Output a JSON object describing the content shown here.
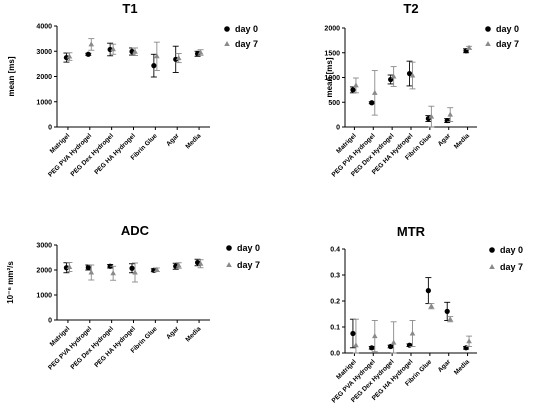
{
  "chart_data": [
    {
      "type": "scatter",
      "title": "T1",
      "ylabel": "mean [ms]",
      "ylim": [
        0,
        4000
      ],
      "yticks": [
        "0",
        "1000",
        "2000",
        "3000",
        "4000"
      ],
      "categories": [
        "Matrigel",
        "PEG PVA Hydrogel",
        "PEG Dex Hydrogel",
        "PEG HA Hydrogel",
        "Fibrin Glue",
        "Agar",
        "Media"
      ],
      "legend": [
        "day 0",
        "day 7"
      ],
      "legend_position": "top-right",
      "series": [
        {
          "name": "day 0",
          "values": [
            2750,
            2880,
            3070,
            2990,
            2430,
            2680,
            2900
          ],
          "err": [
            180,
            40,
            250,
            140,
            450,
            520,
            100
          ]
        },
        {
          "name": "day 7",
          "values": [
            2790,
            3270,
            3080,
            2980,
            2800,
            2730,
            2950
          ],
          "err": [
            150,
            230,
            200,
            150,
            560,
            180,
            110
          ]
        }
      ]
    },
    {
      "type": "scatter",
      "title": "T2",
      "ylabel": "mean [ms]",
      "ylim": [
        0,
        2000
      ],
      "yticks": [
        "0",
        "500",
        "1000",
        "1500",
        "2000"
      ],
      "categories": [
        "Matrigel",
        "PEG PVA Hydrogel",
        "PEG Dex Hydrogel",
        "PEG HA Hydrogel",
        "Fibrin Glue",
        "Agar",
        "Media"
      ],
      "legend": [
        "day 0",
        "day 7"
      ],
      "legend_position": "top-right",
      "series": [
        {
          "name": "day 0",
          "values": [
            750,
            490,
            960,
            1080,
            170,
            130,
            1540
          ],
          "err": [
            60,
            20,
            90,
            250,
            60,
            40,
            40
          ]
        },
        {
          "name": "day 7",
          "values": [
            840,
            690,
            1020,
            1040,
            210,
            250,
            1600
          ],
          "err": [
            150,
            450,
            200,
            270,
            210,
            140,
            30
          ]
        }
      ]
    },
    {
      "type": "scatter",
      "title": "ADC",
      "ylabel": "10⁻⁶ mm²/s",
      "ylim": [
        0,
        3000
      ],
      "yticks": [
        "0",
        "1000",
        "2000",
        "3000"
      ],
      "categories": [
        "Matrigel",
        "PEG PVA Hydrogel",
        "PEG Dex Hydrogel",
        "PEG HA Hydrogel",
        "Fibrin Glue",
        "Agar",
        "Media"
      ],
      "legend": [
        "day 0",
        "day 7"
      ],
      "legend_position": "top-right",
      "series": [
        {
          "name": "day 0",
          "values": [
            2090,
            2100,
            2150,
            2070,
            1990,
            2150,
            2300
          ],
          "err": [
            200,
            100,
            70,
            180,
            60,
            120,
            130
          ]
        },
        {
          "name": "day 7",
          "values": [
            2120,
            1900,
            1870,
            1900,
            2010,
            2180,
            2250
          ],
          "err": [
            180,
            300,
            280,
            380,
            70,
            110,
            160
          ]
        }
      ]
    },
    {
      "type": "scatter",
      "title": "MTR",
      "ylabel": "",
      "ylim": [
        0,
        0.4
      ],
      "yticks": [
        "0.0",
        "0.1",
        "0.2",
        "0.3",
        "0.4"
      ],
      "categories": [
        "Matrigel",
        "PEG PVA Hydrogel",
        "PEG Dex Hydrogel",
        "PEG HA Hydrogel",
        "Fibrin Glue",
        "Agar",
        "Media"
      ],
      "legend": [
        "day 0",
        "day 7"
      ],
      "legend_position": "top-right",
      "series": [
        {
          "name": "day 0",
          "values": [
            0.075,
            0.02,
            0.025,
            0.03,
            0.24,
            0.16,
            0.02
          ],
          "err": [
            0.055,
            0.005,
            0.005,
            0.005,
            0.05,
            0.035,
            0.005
          ]
        },
        {
          "name": "day 7",
          "values": [
            0.03,
            0.065,
            0.04,
            0.075,
            0.18,
            0.13,
            0.045
          ],
          "err": [
            0.1,
            0.06,
            0.08,
            0.05,
            0.01,
            0.01,
            0.02
          ]
        }
      ]
    }
  ]
}
